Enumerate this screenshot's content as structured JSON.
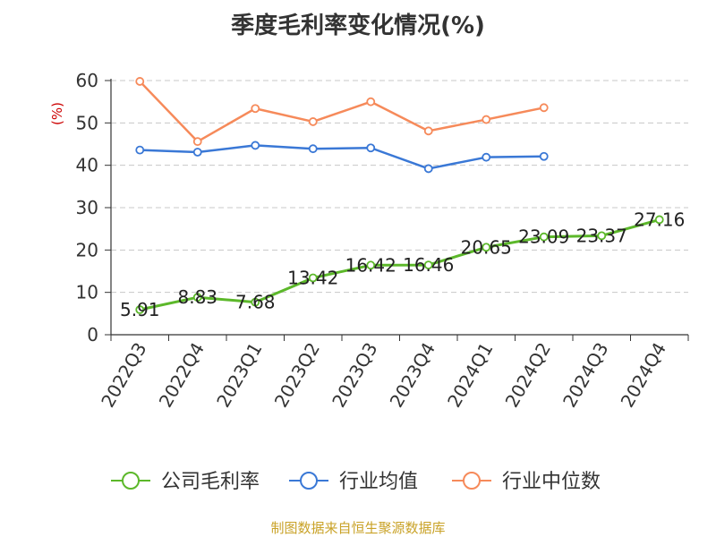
{
  "title": "季度毛利率变化情况(%)",
  "footer": "制图数据来自恒生聚源数据库",
  "chart_data": {
    "type": "line",
    "title": "季度毛利率变化情况(%)",
    "ylabel": "(%)",
    "xlabel": "",
    "ylim": [
      0,
      60
    ],
    "yticks": [
      0,
      10,
      20,
      30,
      40,
      50,
      60
    ],
    "grid": true,
    "legend_position": "bottom",
    "categories": [
      "2022Q3",
      "2022Q4",
      "2023Q1",
      "2023Q2",
      "2023Q3",
      "2023Q4",
      "2024Q1",
      "2024Q2",
      "2024Q3",
      "2024Q4"
    ],
    "series": [
      {
        "name": "公司毛利率",
        "color": "#5cb82a",
        "values": [
          5.91,
          8.83,
          7.68,
          13.42,
          16.42,
          16.46,
          20.65,
          23.09,
          23.37,
          27.16
        ],
        "labels": [
          "5.91",
          "8.83",
          "7.68",
          "13.42",
          "16.42",
          "16.46",
          "20.65",
          "23.09",
          "23.37",
          "27.16"
        ]
      },
      {
        "name": "行业均值",
        "color": "#3a78d6",
        "values": [
          43.6,
          43.1,
          44.7,
          43.9,
          44.1,
          39.2,
          41.9,
          42.1,
          null,
          null
        ]
      },
      {
        "name": "行业中位数",
        "color": "#f68a5a",
        "values": [
          59.8,
          45.6,
          53.4,
          50.3,
          55.0,
          48.1,
          50.8,
          53.6,
          null,
          null
        ]
      }
    ]
  }
}
